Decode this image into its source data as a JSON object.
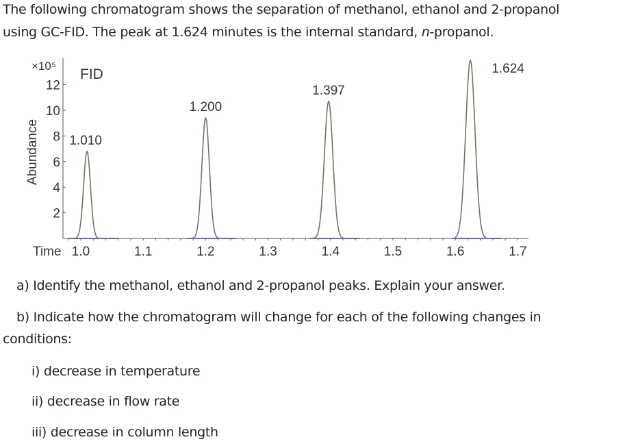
{
  "intro": {
    "line1": "The following chromatogram shows the separation of methanol, ethanol and 2-propanol",
    "line2_a": "using GC-FID.  The peak at 1.624 minutes is the internal standard, ",
    "line2_italic": "n",
    "line2_b": "-propanol."
  },
  "chart_data": {
    "type": "line",
    "detector_label": "FID",
    "ylabel": "Abundance",
    "xlabel": "Time",
    "y_multiplier": "×10⁵",
    "xlim": [
      0.97,
      1.72
    ],
    "ylim": [
      0,
      14
    ],
    "x_ticks": [
      "1.0",
      "1.1",
      "1.2",
      "1.3",
      "1.4",
      "1.5",
      "1.6",
      "1.7"
    ],
    "y_ticks": [
      "2",
      "4",
      "6",
      "8",
      "10",
      "12"
    ],
    "peaks": [
      {
        "time": 1.01,
        "label": "1.010",
        "height": 6.8,
        "width": 0.0055
      },
      {
        "time": 1.2,
        "label": "1.200",
        "height": 9.4,
        "width": 0.006
      },
      {
        "time": 1.397,
        "label": "1.397",
        "height": 10.7,
        "width": 0.0068
      },
      {
        "time": 1.624,
        "label": "1.624",
        "height": 13.9,
        "width": 0.0075
      }
    ],
    "line_color": "#7a7060",
    "baseline_color": "#6a6ae0",
    "grid": false
  },
  "questions": {
    "a": "a)  Identify the methanol, ethanol and 2-propanol peaks. Explain your answer.",
    "b1": "b)  Indicate how the chromatogram will change for each of the following changes in",
    "b2": "conditions:",
    "i": "i)  decrease in temperature",
    "ii": "ii)  decrease in flow rate",
    "iii": "iii) decrease in column length"
  }
}
